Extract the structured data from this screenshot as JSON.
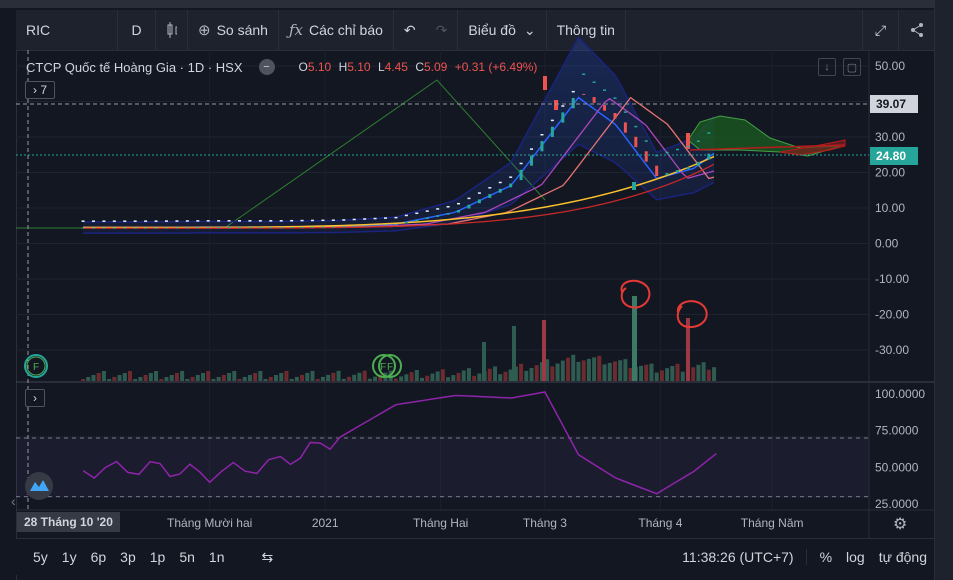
{
  "toolbar": {
    "symbol": "RIC",
    "interval": "D",
    "compare_label": "So sánh",
    "indicators_label": "Các chỉ báo",
    "chart_type_label": "Biểu đồ",
    "info_label": "Thông tin"
  },
  "legend": {
    "title": "CTCP Quốc tế Hoàng Gia · 1D · HSX",
    "open_label": "O",
    "open": "5.10",
    "high_label": "H",
    "high": "5.10",
    "low_label": "L",
    "low": "4.45",
    "close_label": "C",
    "close": "5.09",
    "change": "+0.31 (+6.49%)",
    "indicator_count": "7"
  },
  "price_labels": {
    "current": "24.80",
    "crosshair": "39.07"
  },
  "crosshair_date": "28 Tháng 10 '20",
  "bottom": {
    "ranges": [
      "5y",
      "1y",
      "6p",
      "3p",
      "1p",
      "5n",
      "1n"
    ],
    "time": "11:38:26 (UTC+7)",
    "percent": "%",
    "log": "log",
    "auto": "tự động"
  },
  "markers": {
    "f1": "F",
    "f2": "F",
    "f3": "F"
  },
  "colors": {
    "up": "#26a69a",
    "down": "#ef5350",
    "last": "#26a69a",
    "accent": "#2962ff"
  },
  "chart_data": {
    "type": "line",
    "xlabel": "",
    "ylabel": "",
    "x_ticks": [
      "Tháng Mười hai",
      "2021",
      "Tháng Hai",
      "Tháng 3",
      "Tháng 4",
      "Tháng Năm"
    ],
    "y_ticks": [
      "50.00",
      "40.00",
      "30.00",
      "20.00",
      "10.00",
      "0.00",
      "-10.00",
      "-20.00",
      "-30.00"
    ],
    "ylim": [
      -38,
      50
    ],
    "x": [
      "2020-10-28",
      "2020-11-15",
      "2020-12-01",
      "2020-12-20",
      "2021-01-05",
      "2021-01-20",
      "2021-02-05",
      "2021-02-20",
      "2021-03-01",
      "2021-03-10",
      "2021-03-20",
      "2021-03-31",
      "2021-04-10",
      "2021-04-16"
    ],
    "series": [
      {
        "values": [
          4.5,
          4.5,
          4.6,
          4.6,
          4.8,
          5.5,
          9,
          17,
          30,
          43,
          35,
          19,
          22,
          27
        ]
      }
    ],
    "volume": [
      0.3,
      0.3,
      0.4,
      0.5,
      1,
      2,
      3,
      5,
      8,
      9,
      4,
      15,
      5,
      10
    ],
    "oscillator": {
      "y_ticks": [
        "100.0000",
        "75.0000",
        "50.0000",
        "25.0000"
      ],
      "ylim": [
        20,
        105
      ],
      "levels": [
        70,
        30
      ],
      "values": [
        45,
        50,
        48,
        52,
        72,
        90,
        99,
        100,
        100,
        60,
        40,
        32,
        50,
        58
      ]
    },
    "grid": true,
    "legend": "top-left"
  }
}
